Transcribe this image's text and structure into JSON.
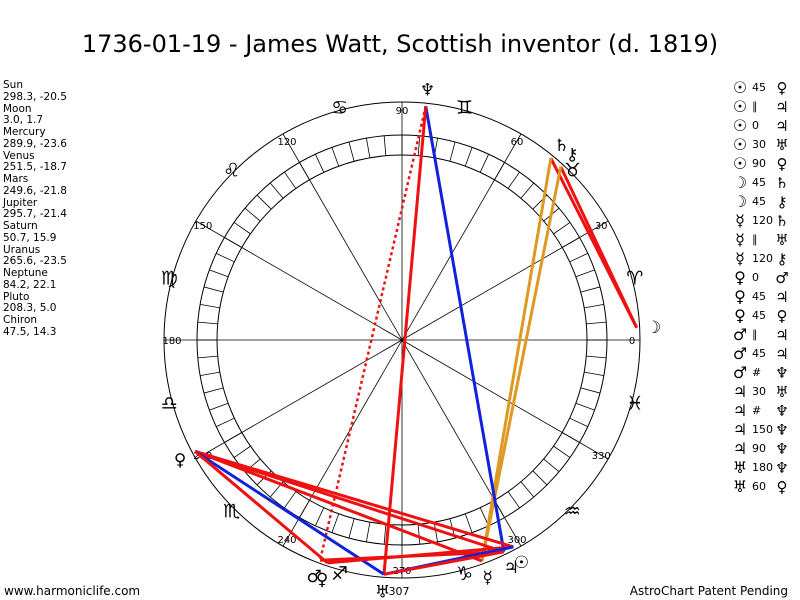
{
  "title": "1736-01-19 - James Watt, Scottish inventor (d. 1819)",
  "planets": [
    {
      "name": "Sun",
      "coords": "298.3, -20.5"
    },
    {
      "name": "Moon",
      "coords": "3.0, 1.7"
    },
    {
      "name": "Mercury",
      "coords": "289.9, -23.6"
    },
    {
      "name": "Venus",
      "coords": "251.5, -18.7"
    },
    {
      "name": "Mars",
      "coords": "249.6, -21.8"
    },
    {
      "name": "Jupiter",
      "coords": "295.7, -21.4"
    },
    {
      "name": "Saturn",
      "coords": "50.7, 15.9"
    },
    {
      "name": "Uranus",
      "coords": "265.6, -23.5"
    },
    {
      "name": "Neptune",
      "coords": "84.2, 22.1"
    },
    {
      "name": "Pluto",
      "coords": "208.3, 5.0"
    },
    {
      "name": "Chiron",
      "coords": "47.5, 14.3"
    }
  ],
  "aspects": [
    {
      "a": "☉",
      "n": "45",
      "b": "♀"
    },
    {
      "a": "☉",
      "n": "∥",
      "b": "♃"
    },
    {
      "a": "☉",
      "n": "0",
      "b": "♃"
    },
    {
      "a": "☉",
      "n": "30",
      "b": "♅"
    },
    {
      "a": "☉",
      "n": "90",
      "b": "♀"
    },
    {
      "a": "☽",
      "n": "45",
      "b": "♄"
    },
    {
      "a": "☽",
      "n": "45",
      "b": "⚷"
    },
    {
      "a": "☿",
      "n": "120",
      "b": "♄"
    },
    {
      "a": "☿",
      "n": "∥",
      "b": "♅"
    },
    {
      "a": "☿",
      "n": "120",
      "b": "⚷"
    },
    {
      "a": "♀",
      "n": "0",
      "b": "♂"
    },
    {
      "a": "♀",
      "n": "45",
      "b": "♃"
    },
    {
      "a": "♀",
      "n": "45",
      "b": "♀"
    },
    {
      "a": "♂",
      "n": "∥",
      "b": "♃"
    },
    {
      "a": "♂",
      "n": "45",
      "b": "♃"
    },
    {
      "a": "♂",
      "n": "#",
      "b": "♆"
    },
    {
      "a": "♃",
      "n": "30",
      "b": "♅"
    },
    {
      "a": "♃",
      "n": "#",
      "b": "♆"
    },
    {
      "a": "♃",
      "n": "150",
      "b": "♆"
    },
    {
      "a": "♃",
      "n": "90",
      "b": "♆"
    },
    {
      "a": "♅",
      "n": "180",
      "b": "♆"
    },
    {
      "a": "♅",
      "n": "60",
      "b": "♀"
    }
  ],
  "wheel": {
    "degree_labels": [
      "0",
      "30",
      "60",
      "90",
      "120",
      "150",
      "180",
      "210",
      "240",
      "270",
      "300",
      "330"
    ],
    "signs": [
      "♈",
      "♉",
      "♊",
      "♋",
      "♌",
      "♍",
      "♎",
      "♏",
      "♐",
      "♑",
      "♒",
      "♓"
    ],
    "ring_color": "#000000"
  },
  "bodies": [
    {
      "glyph": "☽",
      "lon": 3.0
    },
    {
      "glyph": "♄",
      "lon": 50.7
    },
    {
      "glyph": "⚷",
      "lon": 47.5
    },
    {
      "glyph": "♆",
      "lon": 84.2
    },
    {
      "glyph": "♀",
      "lon": 208.3
    },
    {
      "glyph": "♂",
      "lon": 249.6
    },
    {
      "glyph": "♀",
      "lon": 251.5
    },
    {
      "glyph": "♅",
      "lon": 265.6
    },
    {
      "glyph": "☿",
      "lon": 289.9
    },
    {
      "glyph": "♃",
      "lon": 295.7
    },
    {
      "glyph": "☉",
      "lon": 298.3
    }
  ],
  "uranus_deg_label": "307",
  "aspect_lines": [
    {
      "from": 3.0,
      "to": 50.7,
      "color": "#ee1111",
      "style": "solid"
    },
    {
      "from": 3.0,
      "to": 47.5,
      "color": "#ee1111",
      "style": "solid"
    },
    {
      "from": 50.7,
      "to": 289.9,
      "color": "#dd9922",
      "style": "solid"
    },
    {
      "from": 47.5,
      "to": 289.9,
      "color": "#dd9922",
      "style": "solid"
    },
    {
      "from": 84.2,
      "to": 295.7,
      "color": "#1122dd",
      "style": "solid"
    },
    {
      "from": 84.2,
      "to": 265.6,
      "color": "#ee1111",
      "style": "solid"
    },
    {
      "from": 84.2,
      "to": 249.6,
      "color": "#ee1111",
      "style": "dotted"
    },
    {
      "from": 208.3,
      "to": 295.7,
      "color": "#ee1111",
      "style": "solid"
    },
    {
      "from": 208.3,
      "to": 298.3,
      "color": "#ee1111",
      "style": "solid"
    },
    {
      "from": 208.3,
      "to": 289.9,
      "color": "#ee1111",
      "style": "solid"
    },
    {
      "from": 208.3,
      "to": 265.6,
      "color": "#1122dd",
      "style": "solid"
    },
    {
      "from": 208.3,
      "to": 251.5,
      "color": "#ee1111",
      "style": "solid"
    },
    {
      "from": 249.6,
      "to": 295.7,
      "color": "#ee1111",
      "style": "solid"
    },
    {
      "from": 251.5,
      "to": 298.3,
      "color": "#ee1111",
      "style": "solid"
    },
    {
      "from": 265.6,
      "to": 298.3,
      "color": "#1122dd",
      "style": "solid"
    },
    {
      "from": 265.6,
      "to": 295.7,
      "color": "#ee1111",
      "style": "solid"
    }
  ],
  "footer": {
    "left": "www.harmoniclife.com",
    "right": "AstroChart Patent Pending"
  }
}
